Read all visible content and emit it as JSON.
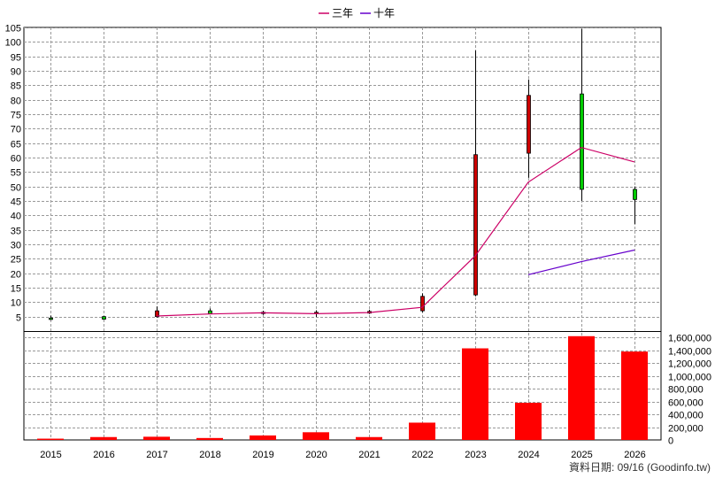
{
  "chart_data": {
    "type": "candlestick",
    "legend": {
      "placement": "top-center",
      "entries": [
        {
          "label": "三年",
          "color": "#cc0066"
        },
        {
          "label": "十年",
          "color": "#6600cc"
        }
      ]
    },
    "categories": [
      "2015",
      "2016",
      "2017",
      "2018",
      "2019",
      "2020",
      "2021",
      "2022",
      "2023",
      "2024",
      "2025",
      "2026"
    ],
    "price_axis": {
      "range": [
        0,
        105
      ],
      "ticks": [
        5,
        10,
        15,
        20,
        25,
        30,
        35,
        40,
        45,
        50,
        55,
        60,
        65,
        70,
        75,
        80,
        85,
        90,
        95,
        100,
        105
      ],
      "grid": true
    },
    "volume_axis": {
      "range": [
        0,
        1700000
      ],
      "ticks": [
        0,
        200000,
        400000,
        600000,
        800000,
        1000000,
        1200000,
        1400000,
        1600000
      ],
      "tick_labels": [
        "0",
        "200,000",
        "400,000",
        "600,000",
        "800,000",
        "1,000,000",
        "1,200,000",
        "1,400,000",
        "1,600,000"
      ],
      "grid": true
    },
    "candles": [
      {
        "x": "2015",
        "open": 4.5,
        "high": 5.3,
        "low": 3.8,
        "close": 4.0
      },
      {
        "x": "2016",
        "open": 5.0,
        "high": 5.2,
        "low": 3.9,
        "close": 4.1
      },
      {
        "x": "2017",
        "open": 5.0,
        "high": 8.5,
        "low": 4.6,
        "close": 7.0
      },
      {
        "x": "2018",
        "open": 7.0,
        "high": 7.8,
        "low": 5.8,
        "close": 6.0
      },
      {
        "x": "2019",
        "open": 6.5,
        "high": 7.0,
        "low": 5.6,
        "close": 6.2
      },
      {
        "x": "2020",
        "open": 6.2,
        "high": 7.2,
        "low": 4.9,
        "close": 6.5
      },
      {
        "x": "2021",
        "open": 6.2,
        "high": 7.4,
        "low": 5.9,
        "close": 6.8
      },
      {
        "x": "2022",
        "open": 7.0,
        "high": 13.0,
        "low": 6.5,
        "close": 12.0
      },
      {
        "x": "2023",
        "open": 12.5,
        "high": 97.0,
        "low": 12.0,
        "close": 61.0
      },
      {
        "x": "2024",
        "open": 61.5,
        "high": 87.0,
        "low": 53.0,
        "close": 81.5
      },
      {
        "x": "2025",
        "open": 82.0,
        "high": 104.5,
        "low": 45.0,
        "close": 49.0
      },
      {
        "x": "2026",
        "open": 49.0,
        "high": 50.0,
        "low": 37.0,
        "close": 45.5
      }
    ],
    "colors": {
      "up": "#cc0000",
      "down": "#00cc00",
      "volume": "#ff0000",
      "grid": "#999999"
    },
    "series": [
      {
        "name": "三年",
        "color": "#cc0066",
        "points": [
          [
            "2017",
            5.2
          ],
          [
            "2018",
            5.9
          ],
          [
            "2019",
            6.3
          ],
          [
            "2020",
            6.0
          ],
          [
            "2021",
            6.4
          ],
          [
            "2022",
            8.2
          ],
          [
            "2023",
            26.0
          ],
          [
            "2024",
            51.5
          ],
          [
            "2025",
            63.5
          ],
          [
            "2026",
            58.5
          ]
        ]
      },
      {
        "name": "十年",
        "color": "#6600cc",
        "points": [
          [
            "2024",
            19.5
          ],
          [
            "2025",
            24.0
          ],
          [
            "2026",
            28.0
          ]
        ]
      }
    ],
    "volume": [
      20000,
      45000,
      50000,
      30000,
      70000,
      120000,
      45000,
      270000,
      1430000,
      580000,
      1620000,
      1380000
    ]
  },
  "footer": {
    "text": "資料日期: 09/16 (Goodinfo.tw)"
  }
}
